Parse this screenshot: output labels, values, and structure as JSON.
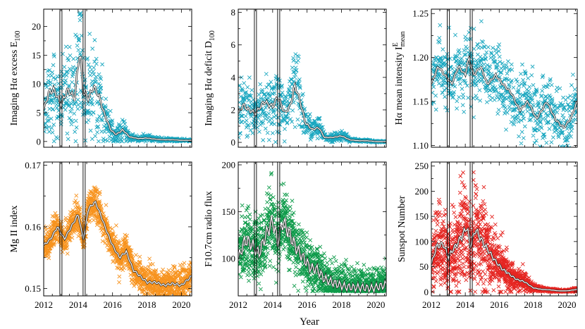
{
  "figure": {
    "xlabel": "Year"
  },
  "colors": {
    "cyan": "#1aa7c0",
    "orange": "#f7931e",
    "green": "#0e9b4a",
    "red": "#e52521",
    "mean_line": "#ffffff"
  },
  "chart_data": [
    {
      "type": "scatter",
      "id": "e100",
      "ylabel": "Imaging Hα excess E",
      "ylabel_sub": "100",
      "ylim": [
        -1,
        23
      ],
      "yticks": [
        0,
        5,
        10,
        15,
        20
      ],
      "ytick_labels": [
        "0",
        "5",
        "10",
        "15",
        "20"
      ],
      "xlim": [
        2012,
        2020.6
      ],
      "xticks": [
        2012,
        2014,
        2016,
        2018,
        2020
      ],
      "xtick_labels": [
        "2012",
        "2014",
        "2016",
        "2018",
        "2020"
      ],
      "color": "#1aa7c0",
      "spread": 0.45,
      "n_points": 750,
      "floor": 0,
      "vlines": [
        2013.0,
        2014.35
      ],
      "mean_profile": [
        [
          2012.0,
          5.5
        ],
        [
          2012.3,
          8.5
        ],
        [
          2012.6,
          9.0
        ],
        [
          2013.0,
          6.5
        ],
        [
          2013.4,
          9.0
        ],
        [
          2013.8,
          7.5
        ],
        [
          2014.1,
          16.0
        ],
        [
          2014.3,
          8.5
        ],
        [
          2014.6,
          7.5
        ],
        [
          2014.9,
          9.5
        ],
        [
          2015.2,
          8.0
        ],
        [
          2015.5,
          5.0
        ],
        [
          2015.9,
          2.0
        ],
        [
          2016.2,
          1.2
        ],
        [
          2016.6,
          2.0
        ],
        [
          2017.0,
          0.8
        ],
        [
          2017.5,
          0.5
        ],
        [
          2018.0,
          0.6
        ],
        [
          2018.5,
          0.4
        ],
        [
          2019.0,
          0.3
        ],
        [
          2019.5,
          0.3
        ],
        [
          2020.0,
          0.2
        ],
        [
          2020.6,
          0.2
        ]
      ]
    },
    {
      "type": "scatter",
      "id": "d100",
      "ylabel": "Imaging Hα deficit D",
      "ylabel_sub": "100",
      "ylim": [
        -0.3,
        8.2
      ],
      "yticks": [
        0,
        2,
        4,
        6,
        8
      ],
      "ytick_labels": [
        "0",
        "2",
        "4",
        "6",
        "8"
      ],
      "xlim": [
        2012,
        2020.6
      ],
      "xticks": [
        2012,
        2014,
        2016,
        2018,
        2020
      ],
      "xtick_labels": [
        "2012",
        "2014",
        "2016",
        "2018",
        "2020"
      ],
      "color": "#1aa7c0",
      "spread": 0.4,
      "n_points": 750,
      "floor": 0,
      "vlines": [
        2013.0,
        2014.35
      ],
      "mean_profile": [
        [
          2012.0,
          1.8
        ],
        [
          2012.3,
          2.3
        ],
        [
          2012.6,
          2.0
        ],
        [
          2013.0,
          1.8
        ],
        [
          2013.5,
          2.5
        ],
        [
          2014.0,
          2.2
        ],
        [
          2014.3,
          2.8
        ],
        [
          2014.7,
          1.8
        ],
        [
          2015.0,
          2.2
        ],
        [
          2015.3,
          3.5
        ],
        [
          2015.6,
          2.5
        ],
        [
          2015.9,
          1.2
        ],
        [
          2016.3,
          0.8
        ],
        [
          2016.7,
          0.9
        ],
        [
          2017.0,
          0.3
        ],
        [
          2017.5,
          0.3
        ],
        [
          2018.0,
          0.4
        ],
        [
          2018.5,
          0.15
        ],
        [
          2019.0,
          0.1
        ],
        [
          2019.5,
          0.1
        ],
        [
          2020.0,
          0.05
        ],
        [
          2020.6,
          0.05
        ]
      ]
    },
    {
      "type": "scatter",
      "id": "imean",
      "ylabel": "Hα mean intensity I",
      "ylabel_sub": "mean",
      "ylabel_sup": "E",
      "ylim": [
        1.098,
        1.255
      ],
      "yticks": [
        1.1,
        1.15,
        1.2,
        1.25
      ],
      "ytick_labels": [
        "1.10",
        "1.15",
        "1.20",
        "1.25"
      ],
      "xlim": [
        2012,
        2020.6
      ],
      "xticks": [
        2012,
        2014,
        2016,
        2018,
        2020
      ],
      "xtick_labels": [
        "2012",
        "2014",
        "2016",
        "2018",
        "2020"
      ],
      "color": "#1aa7c0",
      "spread": 0.018,
      "abs_spread": true,
      "n_points": 750,
      "vlines": [
        2013.0,
        2014.35
      ],
      "mean_profile": [
        [
          2012.0,
          1.17
        ],
        [
          2012.4,
          1.19
        ],
        [
          2012.8,
          1.18
        ],
        [
          2013.2,
          1.17
        ],
        [
          2013.6,
          1.19
        ],
        [
          2014.0,
          1.18
        ],
        [
          2014.2,
          1.2
        ],
        [
          2014.5,
          1.18
        ],
        [
          2014.9,
          1.19
        ],
        [
          2015.3,
          1.17
        ],
        [
          2015.8,
          1.18
        ],
        [
          2016.2,
          1.17
        ],
        [
          2016.7,
          1.16
        ],
        [
          2017.2,
          1.14
        ],
        [
          2017.7,
          1.15
        ],
        [
          2018.2,
          1.13
        ],
        [
          2018.8,
          1.15
        ],
        [
          2019.3,
          1.13
        ],
        [
          2019.8,
          1.12
        ],
        [
          2020.2,
          1.13
        ],
        [
          2020.6,
          1.15
        ]
      ]
    },
    {
      "type": "scatter",
      "id": "mgii",
      "ylabel": "Mg II index",
      "ylim": [
        0.1488,
        0.1705
      ],
      "yticks": [
        0.15,
        0.16,
        0.17
      ],
      "ytick_labels": [
        "0.15",
        "0.16",
        "0.17"
      ],
      "xlim": [
        2012,
        2020.6
      ],
      "xticks": [
        2012,
        2014,
        2016,
        2018,
        2020
      ],
      "xtick_labels": [
        "2012",
        "2014",
        "2016",
        "2018",
        "2020"
      ],
      "color": "#f7931e",
      "spread": 0.0012,
      "abs_spread": true,
      "n_points": 1600,
      "vlines": [
        2013.0,
        2014.35
      ],
      "mean_profile": [
        [
          2012.0,
          0.157
        ],
        [
          2012.4,
          0.158
        ],
        [
          2012.8,
          0.16
        ],
        [
          2013.2,
          0.158
        ],
        [
          2013.6,
          0.16
        ],
        [
          2014.0,
          0.162
        ],
        [
          2014.3,
          0.158
        ],
        [
          2014.6,
          0.163
        ],
        [
          2015.0,
          0.164
        ],
        [
          2015.3,
          0.162
        ],
        [
          2015.7,
          0.159
        ],
        [
          2016.0,
          0.157
        ],
        [
          2016.4,
          0.155
        ],
        [
          2016.8,
          0.156
        ],
        [
          2017.2,
          0.153
        ],
        [
          2017.6,
          0.152
        ],
        [
          2018.0,
          0.151
        ],
        [
          2018.5,
          0.151
        ],
        [
          2019.0,
          0.1505
        ],
        [
          2019.5,
          0.1508
        ],
        [
          2020.0,
          0.1505
        ],
        [
          2020.6,
          0.152
        ]
      ]
    },
    {
      "type": "scatter",
      "id": "f107",
      "ylabel": "F10.7cm radio flux",
      "ylim": [
        60,
        203
      ],
      "yticks": [
        100,
        150,
        200
      ],
      "ytick_labels": [
        "100",
        "150",
        "200"
      ],
      "xlim": [
        2012,
        2020.6
      ],
      "xticks": [
        2012,
        2014,
        2016,
        2018,
        2020
      ],
      "xtick_labels": [
        "2012",
        "2014",
        "2016",
        "2018",
        "2020"
      ],
      "color": "#0e9b4a",
      "spread": 0.14,
      "n_points": 1600,
      "floor": 65,
      "vlines": [
        2013.0,
        2014.35
      ],
      "mean_profile": [
        [
          2012.0,
          100
        ],
        [
          2012.4,
          120
        ],
        [
          2012.8,
          115
        ],
        [
          2013.2,
          105
        ],
        [
          2013.6,
          125
        ],
        [
          2014.0,
          140
        ],
        [
          2014.3,
          118
        ],
        [
          2014.6,
          140
        ],
        [
          2015.0,
          125
        ],
        [
          2015.4,
          110
        ],
        [
          2015.8,
          100
        ],
        [
          2016.2,
          90
        ],
        [
          2016.6,
          88
        ],
        [
          2017.0,
          78
        ],
        [
          2017.4,
          75
        ],
        [
          2017.8,
          72
        ],
        [
          2018.2,
          70
        ],
        [
          2018.7,
          69
        ],
        [
          2019.2,
          69
        ],
        [
          2019.7,
          68
        ],
        [
          2020.2,
          70
        ],
        [
          2020.6,
          72
        ]
      ]
    },
    {
      "type": "scatter",
      "id": "ssn",
      "ylabel": "Sunspot Number",
      "ylim": [
        -8,
        258
      ],
      "yticks": [
        0,
        50,
        100,
        150,
        200,
        250
      ],
      "ytick_labels": [
        "0",
        "50",
        "100",
        "150",
        "200",
        "250"
      ],
      "xlim": [
        2012,
        2020.6
      ],
      "xticks": [
        2012,
        2014,
        2016,
        2018,
        2020
      ],
      "xtick_labels": [
        "2012",
        "2014",
        "2016",
        "2018",
        "2020"
      ],
      "color": "#e52521",
      "spread": 0.45,
      "n_points": 1600,
      "floor": 0,
      "vlines": [
        2013.0,
        2014.35
      ],
      "mean_profile": [
        [
          2012.0,
          55
        ],
        [
          2012.3,
          90
        ],
        [
          2012.7,
          95
        ],
        [
          2013.0,
          70
        ],
        [
          2013.4,
          90
        ],
        [
          2013.8,
          110
        ],
        [
          2014.1,
          130
        ],
        [
          2014.3,
          90
        ],
        [
          2014.6,
          125
        ],
        [
          2015.0,
          100
        ],
        [
          2015.4,
          80
        ],
        [
          2015.8,
          60
        ],
        [
          2016.2,
          45
        ],
        [
          2016.6,
          35
        ],
        [
          2017.0,
          25
        ],
        [
          2017.5,
          20
        ],
        [
          2018.0,
          8
        ],
        [
          2018.5,
          5
        ],
        [
          2019.0,
          4
        ],
        [
          2019.5,
          2
        ],
        [
          2020.0,
          2
        ],
        [
          2020.6,
          5
        ]
      ]
    }
  ]
}
